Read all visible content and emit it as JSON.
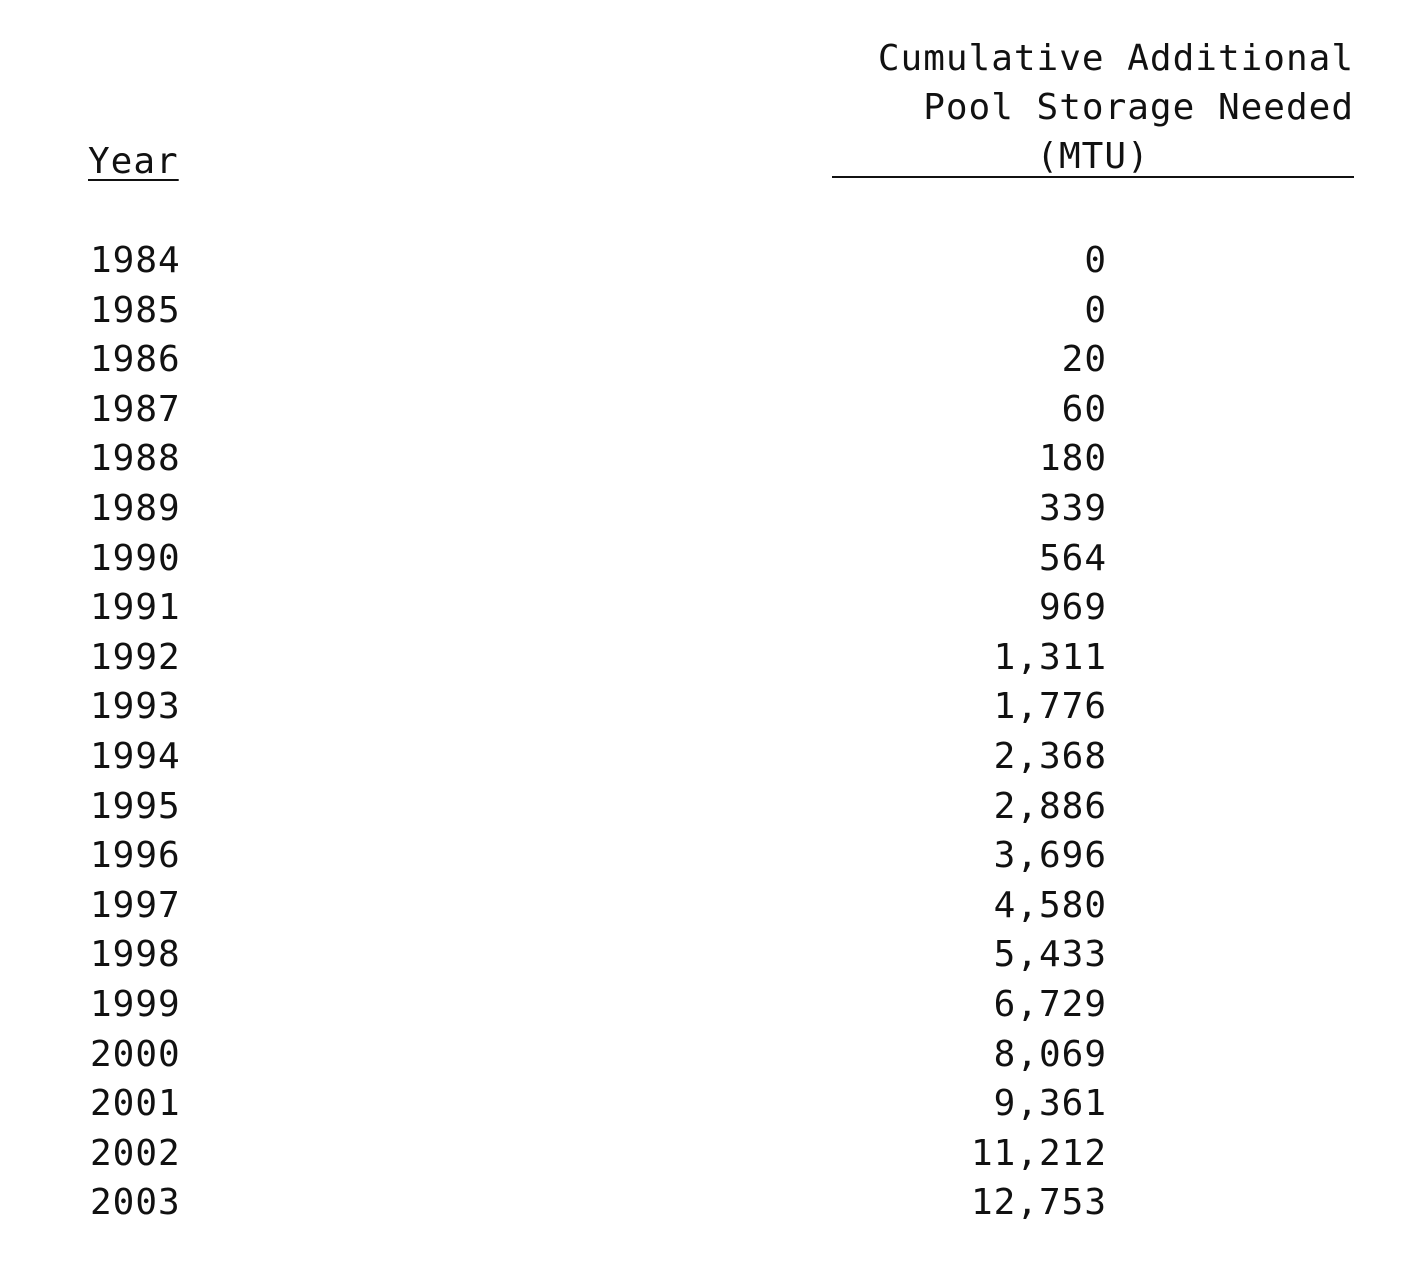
{
  "table": {
    "headers": {
      "year": "Year",
      "value_line1": "Cumulative Additional",
      "value_line2": "Pool Storage Needed",
      "value_unit": "(MTU)"
    },
    "rows": [
      {
        "year": "1984",
        "value": "0"
      },
      {
        "year": "1985",
        "value": "0"
      },
      {
        "year": "1986",
        "value": "20"
      },
      {
        "year": "1987",
        "value": "60"
      },
      {
        "year": "1988",
        "value": "180"
      },
      {
        "year": "1989",
        "value": "339"
      },
      {
        "year": "1990",
        "value": "564"
      },
      {
        "year": "1991",
        "value": "969"
      },
      {
        "year": "1992",
        "value": "1,311"
      },
      {
        "year": "1993",
        "value": "1,776"
      },
      {
        "year": "1994",
        "value": "2,368"
      },
      {
        "year": "1995",
        "value": "2,886"
      },
      {
        "year": "1996",
        "value": "3,696"
      },
      {
        "year": "1997",
        "value": "4,580"
      },
      {
        "year": "1998",
        "value": "5,433"
      },
      {
        "year": "1999",
        "value": "6,729"
      },
      {
        "year": "2000",
        "value": "8,069"
      },
      {
        "year": "2001",
        "value": "9,361"
      },
      {
        "year": "2002",
        "value": "11,212"
      },
      {
        "year": "2003",
        "value": "12,753"
      }
    ]
  }
}
